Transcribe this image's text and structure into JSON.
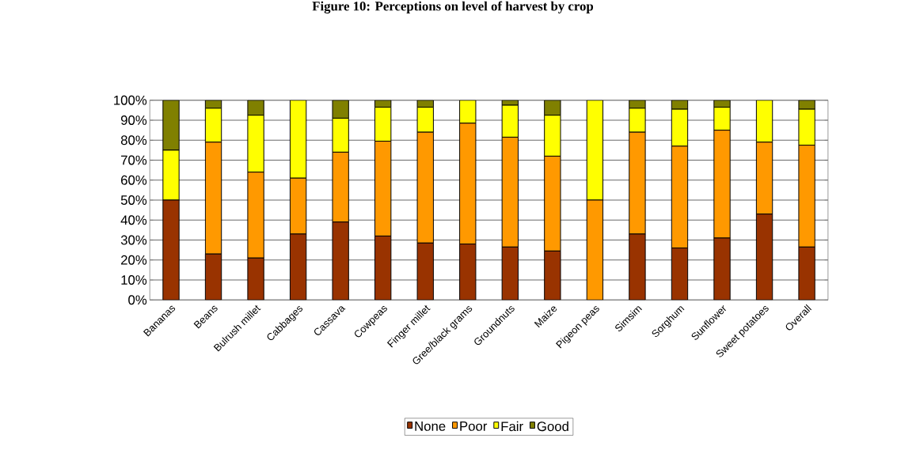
{
  "chart_data": {
    "type": "bar",
    "stacked": true,
    "title": "Figure 10: Perceptions on level of harvest by crop",
    "categories": [
      "Bananas",
      "Beans",
      "Bulrush millet",
      "Cabbages",
      "Cassava",
      "Cowpeas",
      "Finger millet",
      "Gree/black grams",
      "Groundnuts",
      "Maize",
      "Pigeon peas",
      "Simsim",
      "Sorghum",
      "Sunflower",
      "Sweet potatoes",
      "Overall"
    ],
    "series": [
      {
        "name": "None",
        "color": "#993300",
        "values": [
          50,
          23,
          21,
          33,
          39,
          32,
          28.5,
          28,
          26.5,
          24.5,
          0,
          33,
          26,
          31,
          43,
          26.5
        ]
      },
      {
        "name": "Poor",
        "color": "#ff9900",
        "values": [
          0,
          56,
          43,
          28,
          35,
          47.5,
          55.5,
          60.5,
          55,
          47.5,
          50,
          51,
          51,
          54,
          36,
          51
        ]
      },
      {
        "name": "Fair",
        "color": "#ffff00",
        "values": [
          25,
          17,
          28.5,
          39,
          17,
          17,
          12.5,
          11.5,
          16,
          20.5,
          50,
          12,
          18.5,
          11.5,
          21,
          18
        ]
      },
      {
        "name": "Good",
        "color": "#808000",
        "values": [
          25,
          4,
          7.5,
          0,
          9,
          3.5,
          3.5,
          0,
          2.5,
          7.5,
          0,
          4,
          4.5,
          3.5,
          0,
          4.5
        ]
      }
    ],
    "ylim": [
      0,
      100
    ],
    "yticks": [
      {
        "value": 0,
        "label": "0%"
      },
      {
        "value": 10,
        "label": "10%"
      },
      {
        "value": 20,
        "label": "20%"
      },
      {
        "value": 30,
        "label": "30%"
      },
      {
        "value": 40,
        "label": "40%"
      },
      {
        "value": 50,
        "label": "50%"
      },
      {
        "value": 60,
        "label": "60%"
      },
      {
        "value": 70,
        "label": "70%"
      },
      {
        "value": 80,
        "label": "80%"
      },
      {
        "value": 90,
        "label": "90%"
      },
      {
        "value": 100,
        "label": "100%"
      }
    ],
    "grid": "y",
    "legend": "bottom"
  }
}
